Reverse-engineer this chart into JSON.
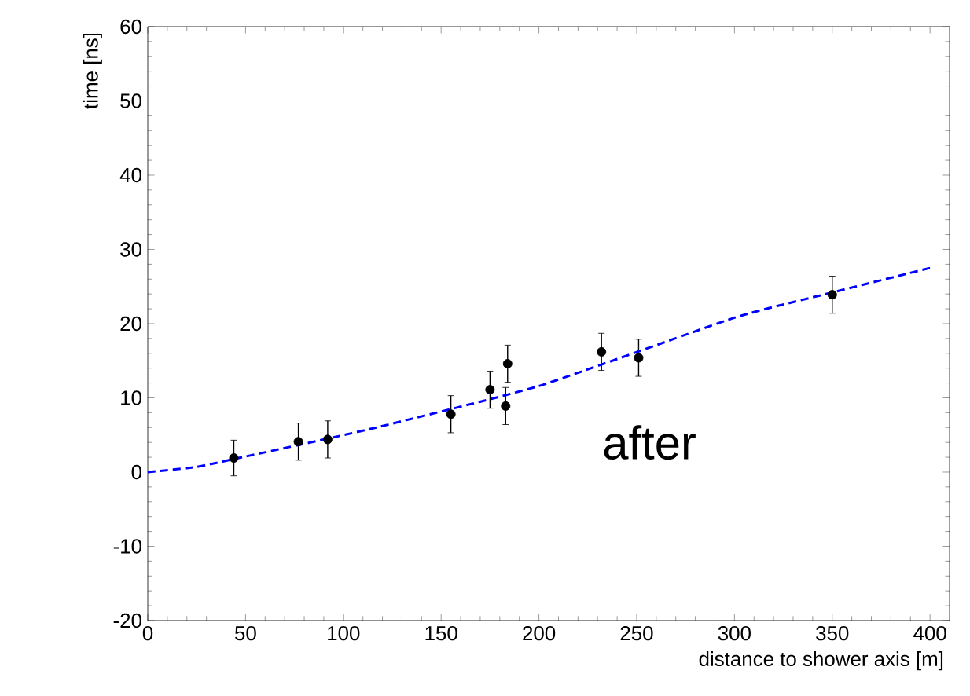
{
  "chart_data": {
    "type": "scatter",
    "xlabel": "distance to shower axis [m]",
    "ylabel": "time [ns]",
    "xlim": [
      0,
      410
    ],
    "ylim": [
      -20,
      60
    ],
    "xticks": [
      0,
      50,
      100,
      150,
      200,
      250,
      300,
      350,
      400
    ],
    "yticks": [
      -20,
      -10,
      0,
      10,
      20,
      30,
      40,
      50,
      60
    ],
    "grid": false,
    "annotations": [
      "after"
    ],
    "series": [
      {
        "color": "#000000",
        "marker": "circle",
        "x": [
          44,
          77,
          92,
          155,
          175,
          183,
          184,
          232,
          251,
          350
        ],
        "values": [
          1.9,
          4.1,
          4.4,
          7.8,
          11.1,
          8.9,
          14.6,
          16.2,
          15.4,
          23.9
        ],
        "errors": [
          2.4,
          2.5,
          2.5,
          2.5,
          2.5,
          2.5,
          2.5,
          2.5,
          2.5,
          2.5
        ]
      },
      {
        "type": "line",
        "color": "#0000ff",
        "line_style": "dashed",
        "marker": "none",
        "x": [
          0,
          25,
          50,
          112,
          200,
          300,
          350,
          400
        ],
        "values": [
          0,
          0.7,
          2.1,
          5.7,
          11.6,
          20.8,
          24.2,
          27.5
        ]
      }
    ]
  }
}
